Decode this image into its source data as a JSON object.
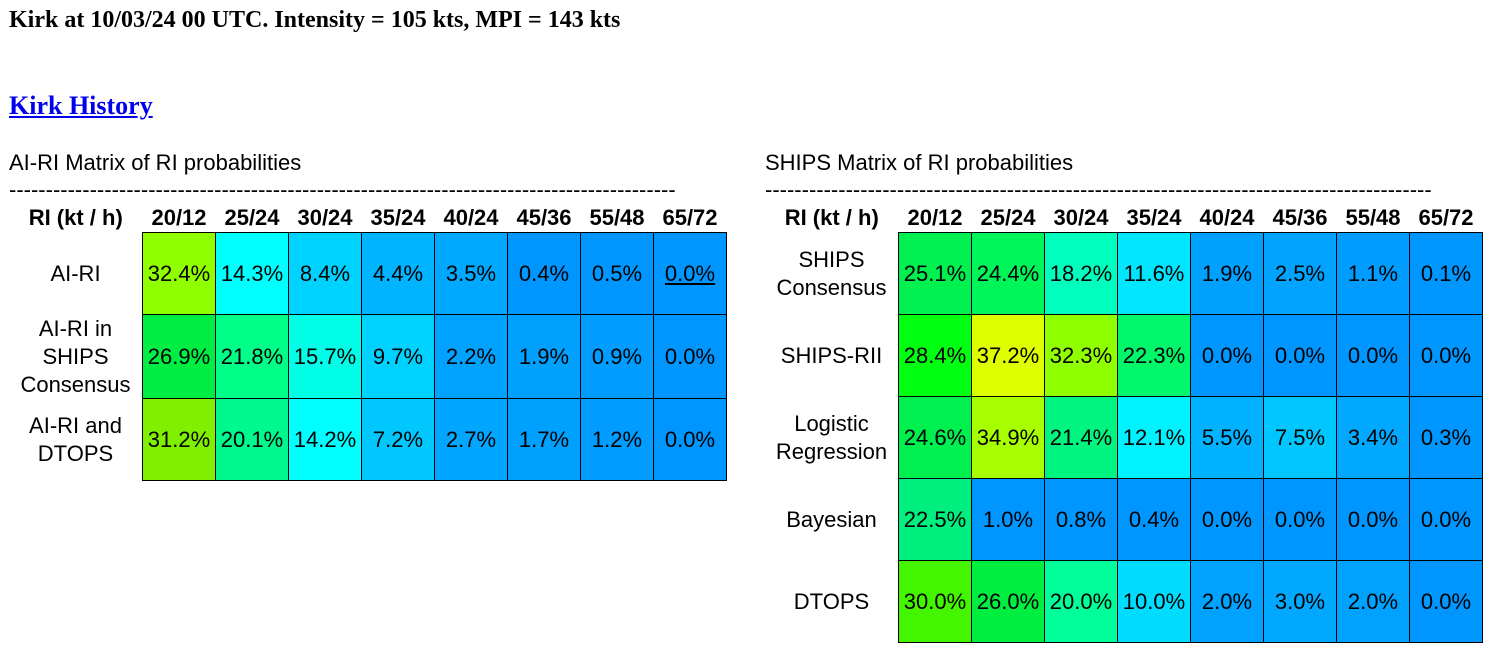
{
  "title": "Kirk at 10/03/24 00 UTC. Intensity = 105 kts, MPI = 143 kts",
  "history_link": "Kirk History",
  "colors": {
    "link": "#0000ee",
    "cell_border": "#000000",
    "scale_note": "cell fill varies from blue (low) through cyan/green to yellow (high probability)"
  },
  "ai_matrix": {
    "title": "AI-RI Matrix of RI probabilities",
    "dashes": "-------------------------------------------------------------------------------------------",
    "header_label": "RI (kt / h)",
    "columns": [
      "20/12",
      "25/24",
      "30/24",
      "35/24",
      "40/24",
      "45/36",
      "55/48",
      "65/72"
    ],
    "rows": [
      {
        "label": "AI-RI",
        "values": [
          "32.4%",
          "14.3%",
          "8.4%",
          "4.4%",
          "3.5%",
          "0.4%",
          "0.5%",
          "0.0%"
        ],
        "colors": [
          "#90ff00",
          "#00ffff",
          "#00d2ff",
          "#00b4ff",
          "#00a8ff",
          "#0096ff",
          "#0096ff",
          "#0096ff"
        ],
        "underline": [
          7
        ]
      },
      {
        "label": "AI-RI in SHIPS Consensus",
        "values": [
          "26.9%",
          "21.8%",
          "15.7%",
          "9.7%",
          "2.2%",
          "1.9%",
          "0.9%",
          "0.0%"
        ],
        "colors": [
          "#00ee44",
          "#00ff88",
          "#00ffe6",
          "#00d2ff",
          "#00a2ff",
          "#00a0ff",
          "#009cff",
          "#0096ff"
        ],
        "underline": []
      },
      {
        "label": "AI-RI and DTOPS",
        "values": [
          "31.2%",
          "20.1%",
          "14.2%",
          "7.2%",
          "2.7%",
          "1.7%",
          "1.2%",
          "0.0%"
        ],
        "colors": [
          "#80f000",
          "#00f98c",
          "#00ffff",
          "#00c8ff",
          "#00a6ff",
          "#00a0ff",
          "#009cff",
          "#0096ff"
        ],
        "underline": []
      }
    ]
  },
  "ships_matrix": {
    "title": "SHIPS Matrix of RI probabilities",
    "dashes": "-------------------------------------------------------------------------------------------",
    "header_label": "RI (kt / h)",
    "columns": [
      "20/12",
      "25/24",
      "30/24",
      "35/24",
      "40/24",
      "45/36",
      "55/48",
      "65/72"
    ],
    "rows": [
      {
        "label": "SHIPS Consensus",
        "values": [
          "25.1%",
          "24.4%",
          "18.2%",
          "11.6%",
          "1.9%",
          "2.5%",
          "1.1%",
          "0.1%"
        ],
        "colors": [
          "#00f050",
          "#00f55a",
          "#00ffbe",
          "#00e6ff",
          "#00a0ff",
          "#00a4ff",
          "#009cff",
          "#0096ff"
        ]
      },
      {
        "label": "SHIPS-RII",
        "values": [
          "28.4%",
          "37.2%",
          "32.3%",
          "22.3%",
          "0.0%",
          "0.0%",
          "0.0%",
          "0.0%"
        ],
        "colors": [
          "#00ff10",
          "#ddff00",
          "#90ff00",
          "#00f76a",
          "#0096ff",
          "#0096ff",
          "#0096ff",
          "#0096ff"
        ]
      },
      {
        "label": "Logistic Regression",
        "values": [
          "24.6%",
          "34.9%",
          "21.4%",
          "12.1%",
          "5.5%",
          "7.5%",
          "3.4%",
          "0.3%"
        ],
        "colors": [
          "#00f050",
          "#a8ff00",
          "#00f580",
          "#00f2ff",
          "#00b2ff",
          "#00c6ff",
          "#00a8ff",
          "#0096ff"
        ]
      },
      {
        "label": "Bayesian",
        "values": [
          "22.5%",
          "1.0%",
          "0.8%",
          "0.4%",
          "0.0%",
          "0.0%",
          "0.0%",
          "0.0%"
        ],
        "colors": [
          "#00f080",
          "#0096ff",
          "#0096ff",
          "#0096ff",
          "#0096ff",
          "#0096ff",
          "#0096ff",
          "#0096ff"
        ]
      },
      {
        "label": "DTOPS",
        "values": [
          "30.0%",
          "26.0%",
          "20.0%",
          "10.0%",
          "2.0%",
          "3.0%",
          "2.0%",
          "0.0%"
        ],
        "colors": [
          "#44f500",
          "#00ee40",
          "#00ff9a",
          "#00dcff",
          "#00a2ff",
          "#00a8ff",
          "#00a2ff",
          "#0096ff"
        ]
      }
    ]
  }
}
